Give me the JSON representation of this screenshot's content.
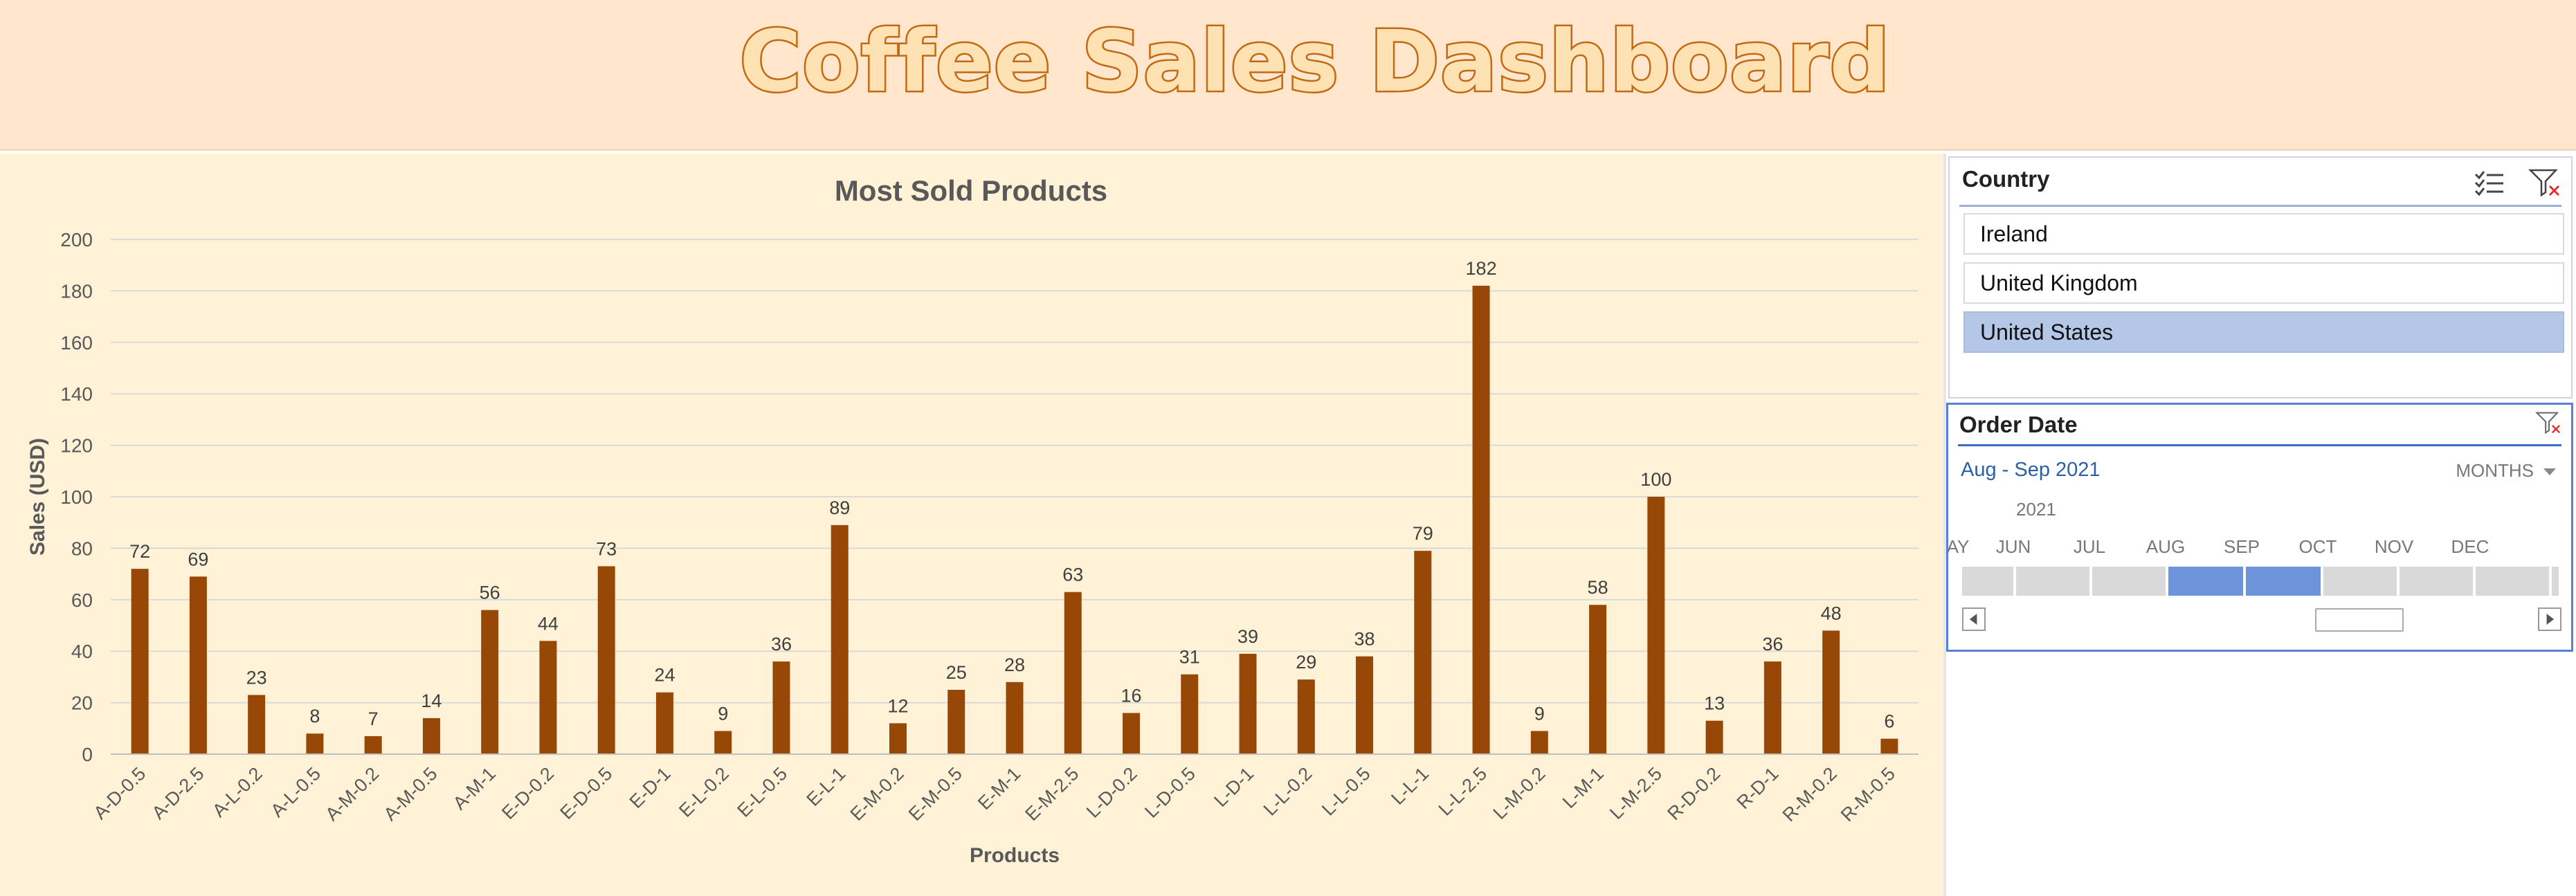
{
  "banner": {
    "title": "Coffee Sales Dashboard"
  },
  "chart_data": {
    "type": "bar",
    "title": "Most Sold Products",
    "xlabel": "Products",
    "ylabel": "Sales (USD)",
    "ylim": [
      0,
      200
    ],
    "yticks": [
      0,
      20,
      40,
      60,
      80,
      100,
      120,
      140,
      160,
      180,
      200
    ],
    "grid": true,
    "bar_color": "#974706",
    "categories": [
      "A-D-0.5",
      "A-D-2.5",
      "A-L-0.2",
      "A-L-0.5",
      "A-M-0.2",
      "A-M-0.5",
      "A-M-1",
      "E-D-0.2",
      "E-D-0.5",
      "E-D-1",
      "E-L-0.2",
      "E-L-0.5",
      "E-L-1",
      "E-M-0.2",
      "E-M-0.5",
      "E-M-1",
      "E-M-2.5",
      "L-D-0.2",
      "L-D-0.5",
      "L-D-1",
      "L-L-0.2",
      "L-L-0.5",
      "L-L-1",
      "L-L-2.5",
      "L-M-0.2",
      "L-M-1",
      "L-M-2.5",
      "R-D-0.2",
      "R-D-1",
      "R-M-0.2",
      "R-M-0.5"
    ],
    "values": [
      72,
      69,
      23,
      8,
      7,
      14,
      56,
      44,
      73,
      24,
      9,
      36,
      89,
      12,
      25,
      28,
      63,
      16,
      31,
      39,
      29,
      38,
      79,
      182,
      9,
      58,
      100,
      13,
      36,
      48,
      6
    ]
  },
  "country_slicer": {
    "header": "Country",
    "multi_select_icon": "multi-select-icon",
    "clear_filter_icon": "clear-filter-icon",
    "items": [
      {
        "label": "Ireland",
        "selected": false
      },
      {
        "label": "United Kingdom",
        "selected": false
      },
      {
        "label": "United States",
        "selected": true
      }
    ]
  },
  "order_date_slicer": {
    "header": "Order Date",
    "clear_filter_icon": "clear-filter-icon",
    "range_label": "Aug - Sep 2021",
    "level_label": "MONTHS",
    "year_label": "2021",
    "months": [
      "AY",
      "JUN",
      "JUL",
      "AUG",
      "SEP",
      "OCT",
      "NOV",
      "DEC"
    ],
    "selected_months": [
      "AUG",
      "SEP"
    ]
  }
}
